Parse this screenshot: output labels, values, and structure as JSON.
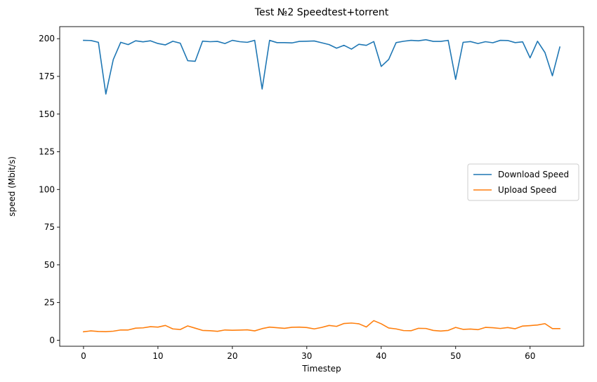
{
  "chart_data": {
    "type": "line",
    "title": "Test №2 Speedtest+torrent",
    "xlabel": "Timestep",
    "ylabel": "speed (Mbit/s)",
    "xlim": [
      -3.2,
      67.2
    ],
    "ylim": [
      -4.0,
      208.0
    ],
    "xticks": [
      0,
      10,
      20,
      30,
      40,
      50,
      60
    ],
    "yticks": [
      0,
      25,
      50,
      75,
      100,
      125,
      150,
      175,
      200
    ],
    "grid": false,
    "legend_position": "center-right",
    "x": [
      0,
      1,
      2,
      3,
      4,
      5,
      6,
      7,
      8,
      9,
      10,
      11,
      12,
      13,
      14,
      15,
      16,
      17,
      18,
      19,
      20,
      21,
      22,
      23,
      24,
      25,
      26,
      27,
      28,
      29,
      30,
      31,
      32,
      33,
      34,
      35,
      36,
      37,
      38,
      39,
      40,
      41,
      42,
      43,
      44,
      45,
      46,
      47,
      48,
      49,
      50,
      51,
      52,
      53,
      54,
      55,
      56,
      57,
      58,
      59,
      60,
      61,
      62,
      63,
      64
    ],
    "series": [
      {
        "name": "Download Speed",
        "color": "#1f77b4",
        "values": [
          198.9,
          198.8,
          197.6,
          163.3,
          186.2,
          197.6,
          196.1,
          198.6,
          197.9,
          198.6,
          196.8,
          195.9,
          198.3,
          197.0,
          185.4,
          185.0,
          198.4,
          198.0,
          198.2,
          196.8,
          198.9,
          198.0,
          197.6,
          198.9,
          166.6,
          198.9,
          197.4,
          197.4,
          197.2,
          198.2,
          198.3,
          198.5,
          197.3,
          196.1,
          193.7,
          195.6,
          193.1,
          196.3,
          195.6,
          198.1,
          181.6,
          186.2,
          197.4,
          198.3,
          198.9,
          198.6,
          199.3,
          198.2,
          198.2,
          198.9,
          173.0,
          197.6,
          198.1,
          196.8,
          198.0,
          197.3,
          198.9,
          198.8,
          197.4,
          197.9,
          187.3,
          198.3,
          190.8,
          175.4,
          194.5
        ]
      },
      {
        "name": "Upload Speed",
        "color": "#ff7f0e",
        "values": [
          5.6,
          6.2,
          5.8,
          5.7,
          6.0,
          6.8,
          6.8,
          8.0,
          8.2,
          9.0,
          8.7,
          9.8,
          7.5,
          7.1,
          9.5,
          8.0,
          6.5,
          6.3,
          5.9,
          6.8,
          6.6,
          6.7,
          6.9,
          6.2,
          7.7,
          8.7,
          8.3,
          7.9,
          8.6,
          8.7,
          8.4,
          7.5,
          8.5,
          9.8,
          9.2,
          11.1,
          11.4,
          10.9,
          8.8,
          13.0,
          10.9,
          8.1,
          7.5,
          6.4,
          6.3,
          7.9,
          7.8,
          6.5,
          6.1,
          6.5,
          8.5,
          7.2,
          7.4,
          7.0,
          8.5,
          8.3,
          7.8,
          8.4,
          7.6,
          9.4,
          9.7,
          10.1,
          11.0,
          7.7,
          7.7
        ]
      }
    ]
  }
}
